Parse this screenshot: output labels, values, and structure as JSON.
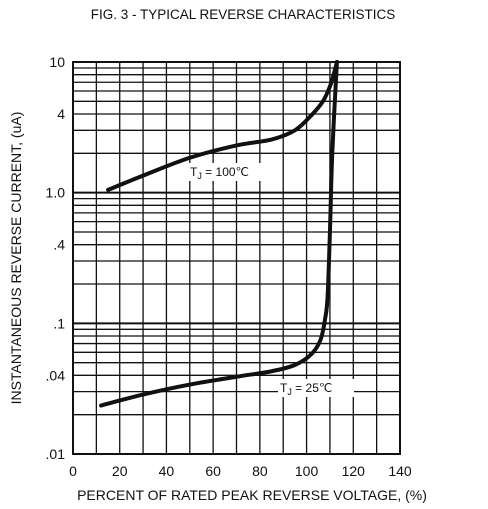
{
  "chart_data": {
    "type": "line",
    "title": "FIG. 3 - TYPICAL REVERSE CHARACTERISTICS",
    "xlabel": "PERCENT OF RATED PEAK REVERSE VOLTAGE, (%)",
    "ylabel": "INSTANTANEOUS REVERSE CURRENT, (uA)",
    "xlim": [
      0,
      140
    ],
    "ylim": [
      0.01,
      10
    ],
    "yscale": "log",
    "x_ticks": [
      0,
      20,
      40,
      60,
      80,
      100,
      120,
      140
    ],
    "x_tick_labels": [
      "0",
      "20",
      "40",
      "60",
      "80",
      "100",
      "120",
      "140"
    ],
    "y_ticks": [
      0.01,
      0.04,
      0.1,
      0.4,
      1.0,
      4,
      10
    ],
    "y_tick_labels": [
      ".01",
      ".04",
      ".1",
      ".4",
      "1.0",
      "4",
      "10"
    ],
    "grid": true,
    "series": [
      {
        "name": "TJ = 100℃",
        "label_main": "T",
        "label_sub": "J",
        "label_rest": " = 100℃",
        "x": [
          15,
          30,
          50,
          70,
          85,
          95,
          102,
          107,
          110,
          112,
          113
        ],
        "y": [
          1.05,
          1.35,
          1.85,
          2.3,
          2.55,
          3.0,
          3.9,
          5.0,
          6.5,
          8.5,
          10
        ]
      },
      {
        "name": "TJ = 25℃",
        "label_main": "T",
        "label_sub": "J",
        "label_rest": " = 25℃",
        "x": [
          12,
          30,
          50,
          70,
          85,
          95,
          102,
          106,
          108,
          109,
          110,
          111,
          113
        ],
        "y": [
          0.0235,
          0.0285,
          0.034,
          0.039,
          0.043,
          0.048,
          0.058,
          0.075,
          0.11,
          0.16,
          0.5,
          2.0,
          10
        ]
      }
    ]
  }
}
